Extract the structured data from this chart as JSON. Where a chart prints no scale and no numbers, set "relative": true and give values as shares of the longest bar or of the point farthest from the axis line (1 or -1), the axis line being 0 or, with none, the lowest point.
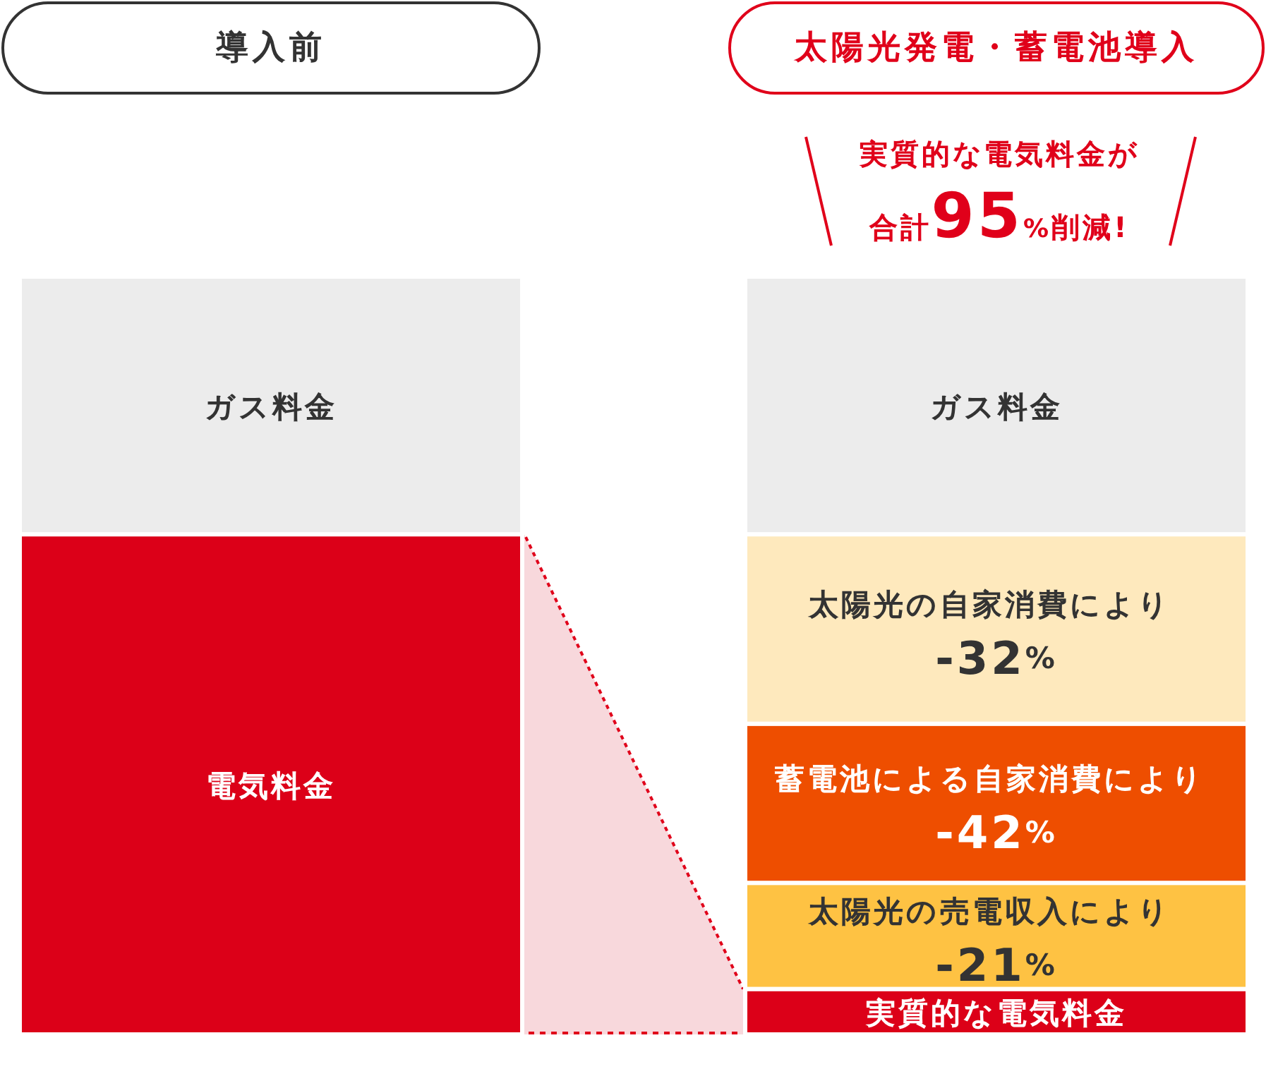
{
  "chart_data": {
    "type": "bar",
    "stacked": true,
    "relative": true,
    "categories": [
      "導入前",
      "太陽光発電・蓄電池導入"
    ],
    "series": [
      {
        "name": "電気料金",
        "color": "#dc0018",
        "values": [
          0.66,
          null
        ]
      },
      {
        "name": "実質的な電気料金",
        "color": "#dc0018",
        "values": [
          null,
          0.06
        ]
      },
      {
        "name": "太陽光の売電収入により -21%",
        "color": "#fec243",
        "values": [
          null,
          0.14
        ]
      },
      {
        "name": "蓄電池による自家消費により -42%",
        "color": "#ee4e00",
        "values": [
          null,
          0.21
        ]
      },
      {
        "name": "太陽光の自家消費により -32%",
        "color": "#fee9bd",
        "values": [
          null,
          0.25
        ]
      },
      {
        "name": "ガス料金",
        "color": "#ececec",
        "values": [
          0.34,
          0.34
        ]
      }
    ],
    "annotations": [
      "実質的な電気料金が",
      "合計95%削減!"
    ]
  }
}
